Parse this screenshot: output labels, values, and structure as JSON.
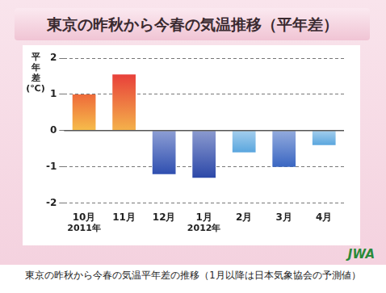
{
  "chart_data": {
    "type": "bar",
    "title": "東京の昨秋から今春の気温推移（平年差）",
    "y_label": "平年差(℃)",
    "categories": [
      "10月",
      "11月",
      "12月",
      "1月",
      "2月",
      "3月",
      "4月"
    ],
    "values": [
      1.0,
      1.55,
      -1.2,
      -1.3,
      -0.6,
      -1.0,
      -0.4
    ],
    "colors": [
      "#ee6a3a",
      "#e8403a",
      "#2f4fb0",
      "#2c48a8",
      "#5aa6de",
      "#3a66c2",
      "#5aa6de"
    ],
    "ylim": [
      -2,
      2
    ],
    "yticks": [
      -2,
      -1,
      0,
      1,
      2
    ],
    "grid": true,
    "annotations": [
      {
        "text": "2011年",
        "category": "10月"
      },
      {
        "text": "2012年",
        "category": "1月"
      }
    ],
    "caption": "東京の昨秋から今春の気温平年差の推移（1月以降は日本気象協会の予測値）",
    "logo": "JWA"
  }
}
